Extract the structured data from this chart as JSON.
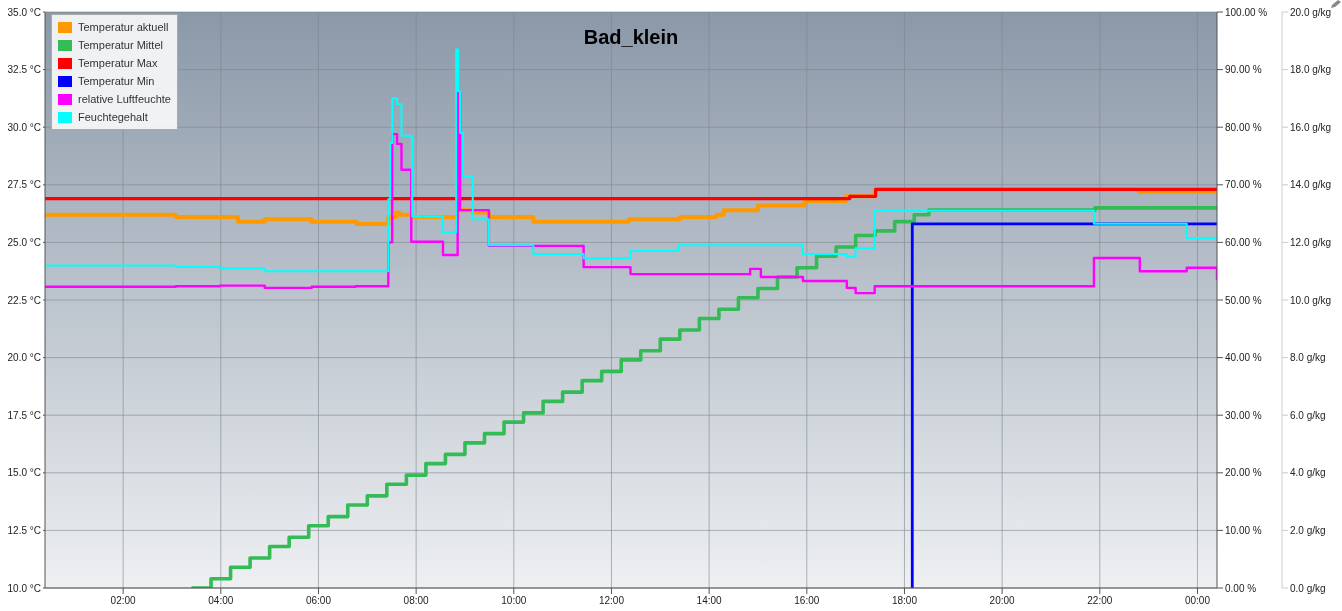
{
  "chart_data": {
    "type": "step",
    "title": "Bad_klein",
    "xlim": [
      0.4,
      24.4
    ],
    "xticks": [
      {
        "value": 2,
        "label": "02:00"
      },
      {
        "value": 4,
        "label": "04:00"
      },
      {
        "value": 6,
        "label": "06:00"
      },
      {
        "value": 8,
        "label": "08:00"
      },
      {
        "value": 10,
        "label": "10:00"
      },
      {
        "value": 12,
        "label": "12:00"
      },
      {
        "value": 14,
        "label": "14:00"
      },
      {
        "value": 16,
        "label": "16:00"
      },
      {
        "value": 18,
        "label": "18:00"
      },
      {
        "value": 20,
        "label": "20:00"
      },
      {
        "value": 22,
        "label": "22:00"
      },
      {
        "value": 24,
        "label": "00:00"
      }
    ],
    "ylim": [
      10,
      35
    ],
    "yticks": [
      {
        "value": 10,
        "label": "10.0 °C"
      },
      {
        "value": 12.5,
        "label": "12.5 °C"
      },
      {
        "value": 15,
        "label": "15.0 °C"
      },
      {
        "value": 17.5,
        "label": "17.5 °C"
      },
      {
        "value": 20,
        "label": "20.0 °C"
      },
      {
        "value": 22.5,
        "label": "22.5 °C"
      },
      {
        "value": 25,
        "label": "25.0 °C"
      },
      {
        "value": 27.5,
        "label": "27.5 °C"
      },
      {
        "value": 30,
        "label": "30.0 °C"
      },
      {
        "value": 32.5,
        "label": "32.5 °C"
      },
      {
        "value": 35,
        "label": "35.0 °C"
      }
    ],
    "y2lim": [
      0,
      100
    ],
    "y2ticks": [
      {
        "value": 0,
        "label": "0.00 %"
      },
      {
        "value": 10,
        "label": "10.00 %"
      },
      {
        "value": 20,
        "label": "20.00 %"
      },
      {
        "value": 30,
        "label": "30.00 %"
      },
      {
        "value": 40,
        "label": "40.00 %"
      },
      {
        "value": 50,
        "label": "50.00 %"
      },
      {
        "value": 60,
        "label": "60.00 %"
      },
      {
        "value": 70,
        "label": "70.00 %"
      },
      {
        "value": 80,
        "label": "80.00 %"
      },
      {
        "value": 90,
        "label": "90.00 %"
      },
      {
        "value": 100,
        "label": "100.00 %"
      }
    ],
    "y3lim": [
      0,
      20
    ],
    "y3ticks": [
      {
        "value": 0,
        "label": "0.0 g/kg"
      },
      {
        "value": 2,
        "label": "2.0 g/kg"
      },
      {
        "value": 4,
        "label": "4.0 g/kg"
      },
      {
        "value": 6,
        "label": "6.0 g/kg"
      },
      {
        "value": 8,
        "label": "8.0 g/kg"
      },
      {
        "value": 10,
        "label": "10.0 g/kg"
      },
      {
        "value": 12,
        "label": "12.0 g/kg"
      },
      {
        "value": 14,
        "label": "14.0 g/kg"
      },
      {
        "value": 16,
        "label": "16.0 g/kg"
      },
      {
        "value": 18,
        "label": "18.0 g/kg"
      },
      {
        "value": 20,
        "label": "20.0 g/kg"
      }
    ],
    "grid": true,
    "legend": "top left",
    "marker": "none",
    "line_style": "solid",
    "series": [
      {
        "name": "Temperatur aktuell",
        "color": "#ff9900",
        "x": [
          0.4,
          3.08,
          4.35,
          4.9,
          5.86,
          6.78,
          7.43,
          7.59,
          7.65,
          7.9,
          8.85,
          9.16,
          9.49,
          10.4,
          12.35,
          13.4,
          14.15,
          14.3,
          15.0,
          15.95,
          16.8,
          17.39,
          22.8,
          23.78,
          24.4
        ],
        "values": [
          26.2,
          26.1,
          25.9,
          26.0,
          25.9,
          25.8,
          26.1,
          26.3,
          26.2,
          26.1,
          26.4,
          26.3,
          26.1,
          25.9,
          26.0,
          26.1,
          26.2,
          26.4,
          26.6,
          26.8,
          27.0,
          27.3,
          27.2,
          27.2,
          27.2
        ]
      },
      {
        "name": "Temperatur Mittel",
        "color": "#33bb55",
        "x": [
          3.4,
          3.8,
          4.2,
          4.6,
          5.0,
          5.4,
          5.8,
          6.2,
          6.6,
          7.0,
          7.4,
          7.8,
          8.2,
          8.6,
          9.0,
          9.4,
          9.8,
          10.2,
          10.6,
          11.0,
          11.4,
          11.8,
          12.2,
          12.6,
          13.0,
          13.4,
          13.8,
          14.2,
          14.6,
          15.0,
          15.4,
          15.8,
          16.2,
          16.6,
          17.0,
          17.4,
          17.8,
          18.2,
          18.5,
          21.9,
          24.4
        ],
        "values": [
          10.0,
          10.4,
          10.9,
          11.3,
          11.8,
          12.2,
          12.7,
          13.1,
          13.6,
          14.0,
          14.5,
          14.9,
          15.4,
          15.8,
          16.3,
          16.7,
          17.2,
          17.6,
          18.1,
          18.5,
          19.0,
          19.4,
          19.9,
          20.3,
          20.8,
          21.2,
          21.7,
          22.1,
          22.6,
          23.0,
          23.5,
          23.9,
          24.4,
          24.8,
          25.3,
          25.5,
          25.9,
          26.2,
          26.4,
          26.5,
          26.5
        ]
      },
      {
        "name": "Temperatur Max",
        "color": "#ff0000",
        "x": [
          0.4,
          16.88,
          17.41,
          24.4
        ],
        "values": [
          26.9,
          27.0,
          27.3,
          27.3
        ]
      },
      {
        "name": "Temperatur Min",
        "color": "#0000ff",
        "x": [
          18.15,
          18.16,
          24.4
        ],
        "values": [
          10.0,
          25.8,
          25.8
        ]
      },
      {
        "name": "relative Luftfeuchte",
        "color": "#ff00ff",
        "axis": "y2",
        "x": [
          0.4,
          3.08,
          3.98,
          4.9,
          5.86,
          6.76,
          7.43,
          7.51,
          7.61,
          7.7,
          7.9,
          8.55,
          8.85,
          8.9,
          9.16,
          9.49,
          11.43,
          12.39,
          14.84,
          15.06,
          15.92,
          16.82,
          17.0,
          17.39,
          21.88,
          22.82,
          23.78,
          24.4
        ],
        "values": [
          52.3,
          52.4,
          52.5,
          52.1,
          52.3,
          52.4,
          60.0,
          78.8,
          77.1,
          72.6,
          60.1,
          57.8,
          86.1,
          65.6,
          65.6,
          59.4,
          55.7,
          54.5,
          55.4,
          54.0,
          53.3,
          52.1,
          51.2,
          52.4,
          57.3,
          55.0,
          55.6,
          53.5
        ]
      },
      {
        "name": "Feuchtegehalt",
        "color": "#00ffff",
        "axis": "y3",
        "x": [
          0.4,
          3.08,
          3.98,
          4.35,
          4.9,
          7.43,
          7.47,
          7.51,
          7.61,
          7.7,
          7.92,
          8.55,
          8.82,
          8.86,
          8.9,
          8.96,
          9.16,
          9.49,
          10.4,
          11.43,
          12.39,
          13.37,
          15.92,
          16.82,
          17.0,
          17.39,
          21.88,
          23.78,
          24.4
        ],
        "values": [
          11.2,
          11.15,
          11.1,
          11.1,
          11.0,
          13.5,
          15.45,
          17.0,
          16.8,
          15.7,
          12.9,
          12.35,
          18.7,
          17.25,
          15.8,
          14.3,
          12.8,
          11.9,
          11.6,
          11.45,
          11.7,
          11.9,
          11.6,
          11.5,
          11.8,
          13.1,
          12.65,
          12.15,
          12.15
        ]
      }
    ]
  }
}
